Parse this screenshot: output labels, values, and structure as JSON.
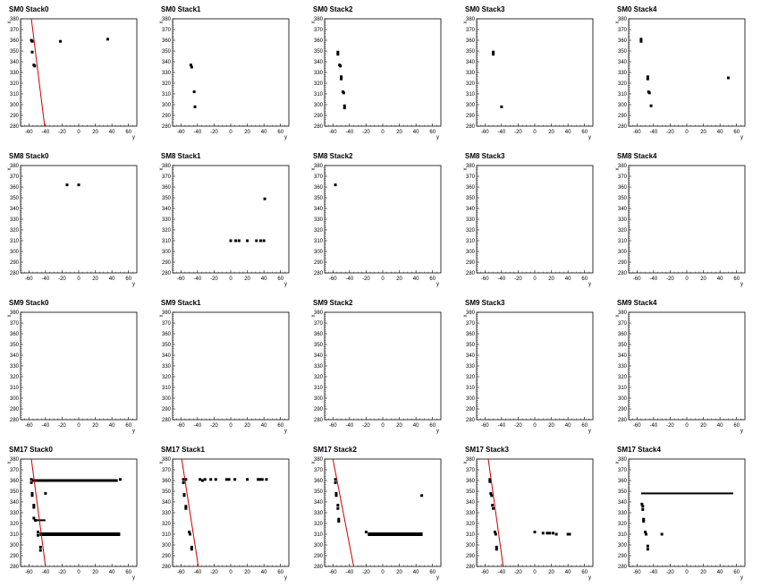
{
  "chart_data": {
    "type": "scatter",
    "xlabel": "y",
    "ylabel": "x",
    "xlim": [
      -70,
      70
    ],
    "ylim": [
      280,
      380
    ],
    "xticks": [
      "-60",
      "-40",
      "-20",
      "0",
      "20",
      "40",
      "60"
    ],
    "yticks": [
      "280",
      "290",
      "300",
      "310",
      "320",
      "330",
      "340",
      "350",
      "360",
      "370",
      "380"
    ],
    "colors": {
      "points": "#000000",
      "fit_line": "#cc0000",
      "frame": "#000000",
      "background": "#ffffff"
    },
    "panels": [
      {
        "title": "SM0 Stack0",
        "points": [
          [
            -57,
            360
          ],
          [
            -56,
            359
          ],
          [
            -56,
            349
          ],
          [
            -54,
            337
          ],
          [
            -53,
            336
          ],
          [
            -22,
            359
          ],
          [
            35,
            361
          ]
        ],
        "fit": [
          [
            -57,
            380
          ],
          [
            -41,
            280
          ]
        ]
      },
      {
        "title": "SM0 Stack1",
        "points": [
          [
            -48,
            337
          ],
          [
            -47,
            335
          ],
          [
            -44,
            312
          ],
          [
            -43,
            298
          ]
        ]
      },
      {
        "title": "SM0 Stack2",
        "points": [
          [
            -54,
            349
          ],
          [
            -54,
            347
          ],
          [
            -52,
            337
          ],
          [
            -51,
            336
          ],
          [
            -50,
            326
          ],
          [
            -50,
            324
          ],
          [
            -48,
            312
          ],
          [
            -47,
            311
          ],
          [
            -46,
            299
          ],
          [
            -46,
            297
          ]
        ]
      },
      {
        "title": "SM0 Stack3",
        "points": [
          [
            -50,
            349
          ],
          [
            -50,
            347
          ],
          [
            -40,
            298
          ]
        ]
      },
      {
        "title": "SM0 Stack4",
        "points": [
          [
            -55,
            361
          ],
          [
            -55,
            359
          ],
          [
            -47,
            326
          ],
          [
            -47,
            324
          ],
          [
            -46,
            312
          ],
          [
            -45,
            311
          ],
          [
            -43,
            299
          ],
          [
            50,
            325
          ]
        ]
      },
      {
        "title": "SM8 Stack0",
        "points": [
          [
            -14,
            362
          ],
          [
            0,
            362
          ]
        ]
      },
      {
        "title": "SM8 Stack1",
        "points": [
          [
            0,
            310
          ],
          [
            6,
            310
          ],
          [
            10,
            310
          ],
          [
            20,
            310
          ],
          [
            31,
            310
          ],
          [
            36,
            310
          ],
          [
            40,
            310
          ],
          [
            41,
            349
          ]
        ]
      },
      {
        "title": "SM8 Stack2",
        "points": [
          [
            -57,
            362
          ]
        ]
      },
      {
        "title": "SM8 Stack3",
        "points": []
      },
      {
        "title": "SM8 Stack4",
        "points": []
      },
      {
        "title": "SM9 Stack0",
        "points": []
      },
      {
        "title": "SM9 Stack1",
        "points": []
      },
      {
        "title": "SM9 Stack2",
        "points": []
      },
      {
        "title": "SM9 Stack3",
        "points": []
      },
      {
        "title": "SM9 Stack4",
        "points": []
      },
      {
        "title": "SM17 Stack0",
        "points": [],
        "bands": [
          [
            -56,
            47,
            360,
            3
          ],
          [
            -47,
            50,
            310,
            4
          ],
          [
            -54,
            -40,
            323,
            2
          ],
          [
            -40,
            -5,
            360,
            2
          ]
        ],
        "extra": [
          [
            -57,
            361
          ],
          [
            -57,
            358
          ],
          [
            -56,
            348
          ],
          [
            -56,
            346
          ],
          [
            -54,
            337
          ],
          [
            -54,
            335
          ],
          [
            -54,
            325
          ],
          [
            -52,
            323
          ],
          [
            -49,
            312
          ],
          [
            -49,
            309
          ],
          [
            -46,
            298
          ],
          [
            -46,
            295
          ],
          [
            -40,
            348
          ],
          [
            50,
            361
          ]
        ],
        "fit": [
          [
            -57,
            380
          ],
          [
            -40,
            280
          ]
        ]
      },
      {
        "title": "SM17 Stack1",
        "points": [
          [
            -57,
            361
          ],
          [
            -57,
            358
          ],
          [
            -56,
            347
          ],
          [
            -56,
            346
          ],
          [
            -54,
            336
          ],
          [
            -54,
            334
          ],
          [
            -50,
            312
          ],
          [
            -49,
            310
          ],
          [
            -47,
            298
          ],
          [
            -47,
            296
          ],
          [
            -54,
            361
          ],
          [
            -37,
            361
          ],
          [
            -34,
            360
          ],
          [
            -31,
            361
          ],
          [
            -24,
            361
          ],
          [
            -18,
            361
          ],
          [
            -5,
            361
          ],
          [
            -2,
            361
          ],
          [
            5,
            361
          ],
          [
            20,
            361
          ],
          [
            33,
            361
          ],
          [
            35,
            361
          ],
          [
            38,
            361
          ],
          [
            43,
            361
          ]
        ],
        "fit": [
          [
            -59,
            380
          ],
          [
            -39,
            280
          ]
        ]
      },
      {
        "title": "SM17 Stack2",
        "points": [
          [
            -57,
            361
          ],
          [
            -57,
            358
          ],
          [
            -56,
            348
          ],
          [
            -56,
            346
          ],
          [
            -54,
            337
          ],
          [
            -54,
            334
          ],
          [
            -53,
            324
          ],
          [
            -53,
            322
          ],
          [
            -20,
            312
          ],
          [
            47,
            346
          ]
        ],
        "bands": [
          [
            -18,
            48,
            310,
            4
          ]
        ],
        "fit": [
          [
            -60,
            380
          ],
          [
            -35,
            280
          ]
        ]
      },
      {
        "title": "SM17 Stack3",
        "points": [
          [
            -54,
            361
          ],
          [
            -54,
            359
          ],
          [
            -53,
            348
          ],
          [
            -52,
            346
          ],
          [
            -51,
            337
          ],
          [
            -50,
            334
          ],
          [
            -48,
            312
          ],
          [
            -47,
            310
          ],
          [
            -46,
            298
          ],
          [
            -46,
            296
          ],
          [
            0,
            312
          ],
          [
            10,
            311
          ],
          [
            15,
            311
          ],
          [
            18,
            311
          ],
          [
            22,
            311
          ],
          [
            26,
            310
          ],
          [
            40,
            310
          ],
          [
            42,
            310
          ]
        ],
        "fit": [
          [
            -56,
            380
          ],
          [
            -38,
            280
          ]
        ]
      },
      {
        "title": "SM17 Stack4",
        "points": [
          [
            -54,
            338
          ],
          [
            -53,
            336
          ],
          [
            -53,
            333
          ],
          [
            -52,
            324
          ],
          [
            -52,
            322
          ],
          [
            -50,
            312
          ],
          [
            -49,
            310
          ],
          [
            -47,
            299
          ],
          [
            -47,
            296
          ],
          [
            -30,
            310
          ]
        ],
        "bands": [
          [
            -55,
            56,
            348,
            2
          ]
        ]
      }
    ]
  }
}
